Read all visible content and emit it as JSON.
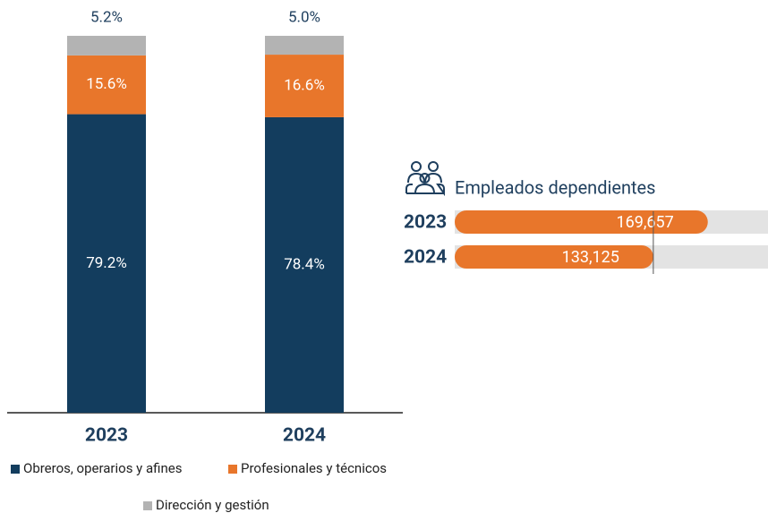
{
  "chart_data": [
    {
      "type": "stacked-bar",
      "categories": [
        "2023",
        "2024"
      ],
      "series": [
        {
          "name": "Obreros, operarios y afines",
          "color": "#133d5e",
          "values": [
            79.2,
            78.4
          ],
          "value_labels": [
            "79.2%",
            "78.4%"
          ]
        },
        {
          "name": "Profesionales y técnicos",
          "color": "#e8762b",
          "values": [
            15.6,
            16.6
          ],
          "value_labels": [
            "15.6%",
            "16.6%"
          ]
        },
        {
          "name": "Dirección y gestión",
          "color": "#b3b3b3",
          "values": [
            5.2,
            5.0
          ],
          "value_labels": [
            "5.2%",
            "5.0%"
          ]
        }
      ],
      "ylim": [
        0,
        100
      ]
    },
    {
      "type": "hbar",
      "title": "Empleados dependientes",
      "categories": [
        "2023",
        "2024"
      ],
      "values": [
        169657,
        133125
      ],
      "value_labels": [
        "169,657",
        "133,125"
      ],
      "color": "#e8762b",
      "xlim": [
        0,
        210000
      ]
    }
  ]
}
